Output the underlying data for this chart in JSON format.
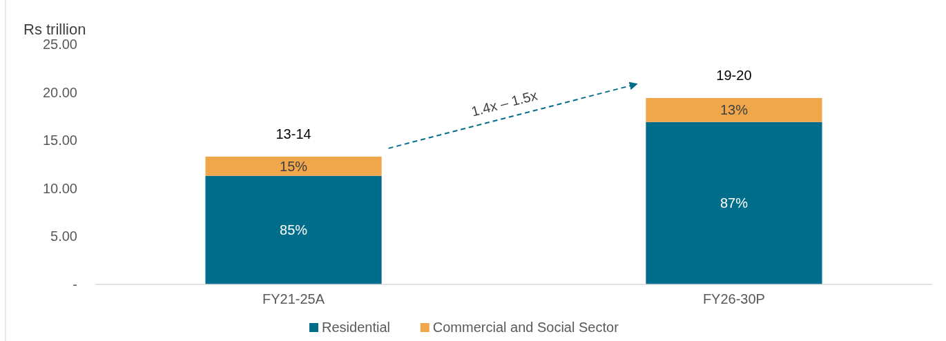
{
  "chart_data": {
    "type": "bar",
    "stacked": true,
    "ylabel": "Rs trillion",
    "categories": [
      "FY21-25A",
      "FY26-30P"
    ],
    "series": [
      {
        "name": "Residential",
        "color": "#006e8a",
        "values": [
          11.3,
          16.9
        ]
      },
      {
        "name": "Commercial and Social Sector",
        "color": "#f0a64a",
        "values": [
          2.0,
          2.5
        ]
      }
    ],
    "totals": [
      "13-14",
      "19-20"
    ],
    "annotations": [
      "1.4x – 1.5x",
      "85%",
      "15%",
      "87%",
      "13%"
    ],
    "ylim": [
      0,
      25
    ],
    "yticks": [
      {
        "value": 0,
        "label": "-"
      },
      {
        "value": 5,
        "label": "5.00"
      },
      {
        "value": 10,
        "label": "10.00"
      },
      {
        "value": 15,
        "label": "15.00"
      },
      {
        "value": 20,
        "label": "20.00"
      },
      {
        "value": 25,
        "label": "25.00"
      }
    ],
    "grid": false,
    "legend": "bottom"
  }
}
